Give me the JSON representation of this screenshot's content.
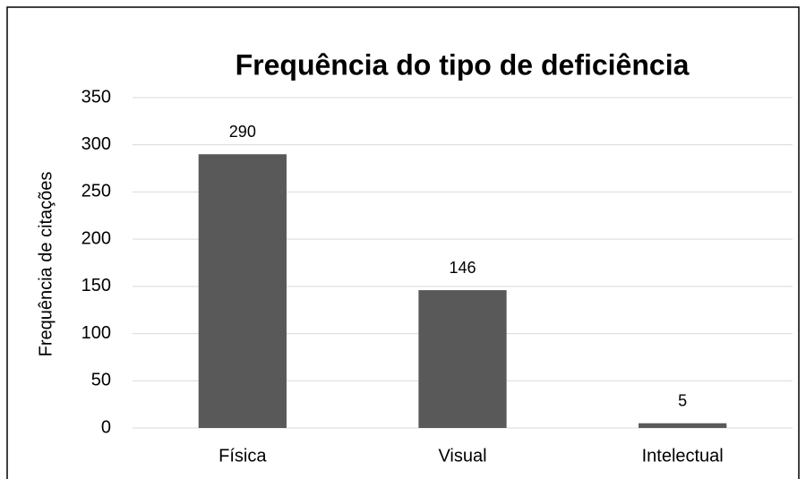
{
  "chart_data": {
    "type": "bar",
    "title": "Frequência do tipo de deficiência",
    "y_label": "Frequência de citações",
    "categories": [
      "Física",
      "Visual",
      "Intelectual"
    ],
    "values": [
      290,
      146,
      5
    ],
    "color": "#595959",
    "ylim": [
      0,
      350
    ],
    "yticks": [
      0,
      50,
      100,
      150,
      200,
      250,
      300,
      350
    ],
    "grid": true
  }
}
